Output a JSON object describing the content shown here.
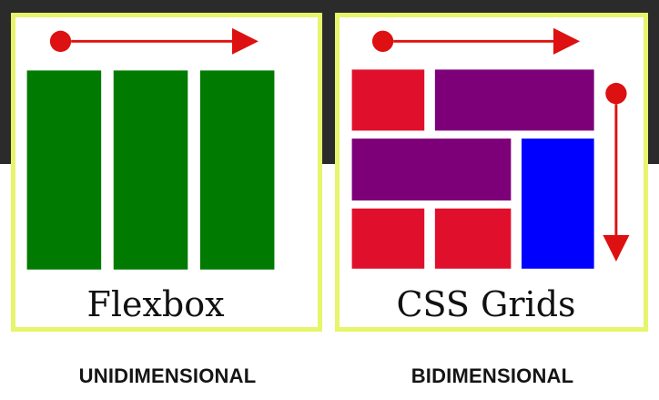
{
  "panels": {
    "flexbox": {
      "caption": "Flexbox",
      "axis": "horizontal",
      "colors": {
        "item": "#007a00",
        "arrow": "#dd1111"
      }
    },
    "css_grids": {
      "caption": "CSS Grids",
      "axes": [
        "horizontal",
        "vertical"
      ],
      "colors": {
        "red": "#e0102c",
        "purple": "#7d0079",
        "blue": "#0000ff",
        "arrow": "#dd1111"
      }
    }
  },
  "labels": {
    "left": "UNIDIMENSIONAL",
    "right": "BIDIMENSIONAL"
  },
  "theme": {
    "panel_border": "#e6f56b",
    "background_top": "#2b2b2b",
    "background_bottom": "#ffffff"
  }
}
